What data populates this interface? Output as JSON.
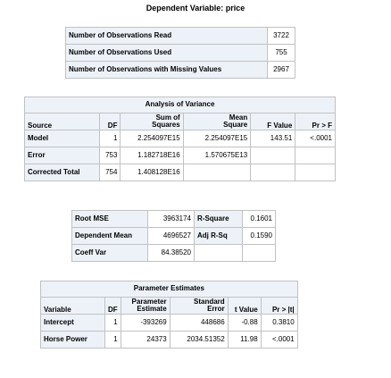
{
  "title": "Dependent Variable: price",
  "observations": {
    "rows": [
      {
        "label": "Number of Observations Read",
        "value": "3722"
      },
      {
        "label": "Number of Observations Used",
        "value": "755"
      },
      {
        "label": "Number of Observations with Missing Values",
        "value": "2967"
      }
    ]
  },
  "anova": {
    "caption": "Analysis of Variance",
    "headers": {
      "source": "Source",
      "df": "DF",
      "ss_1": "Sum of",
      "ss_2": "Squares",
      "ms_1": "Mean",
      "ms_2": "Square",
      "f": "F Value",
      "p": "Pr > F"
    },
    "rows": [
      {
        "source": "Model",
        "df": "1",
        "ss": "2.254097E15",
        "ms": "2.254097E15",
        "f": "143.51",
        "p": "<.0001"
      },
      {
        "source": "Error",
        "df": "753",
        "ss": "1.182718E16",
        "ms": "1.570675E13",
        "f": "",
        "p": ""
      },
      {
        "source": "Corrected Total",
        "df": "754",
        "ss": "1.408128E16",
        "ms": "",
        "f": "",
        "p": ""
      }
    ]
  },
  "fit": {
    "rows": [
      {
        "label1": "Root MSE",
        "value1": "3963174",
        "label2": "R-Square",
        "value2": "0.1601"
      },
      {
        "label1": "Dependent Mean",
        "value1": "4696527",
        "label2": "Adj R-Sq",
        "value2": "0.1590"
      },
      {
        "label1": "Coeff Var",
        "value1": "84.38520",
        "label2": "",
        "value2": ""
      }
    ]
  },
  "params": {
    "caption": "Parameter Estimates",
    "headers": {
      "variable": "Variable",
      "df": "DF",
      "est_1": "Parameter",
      "est_2": "Estimate",
      "se_1": "Standard",
      "se_2": "Error",
      "t": "t Value",
      "p": "Pr > |t|"
    },
    "rows": [
      {
        "variable": "Intercept",
        "df": "1",
        "estimate": "-393269",
        "se": "448686",
        "t": "-0.88",
        "p": "0.3810"
      },
      {
        "variable": "Horse Power",
        "df": "1",
        "estimate": "24373",
        "se": "2034.51352",
        "t": "11.98",
        "p": "<.0001"
      }
    ]
  }
}
